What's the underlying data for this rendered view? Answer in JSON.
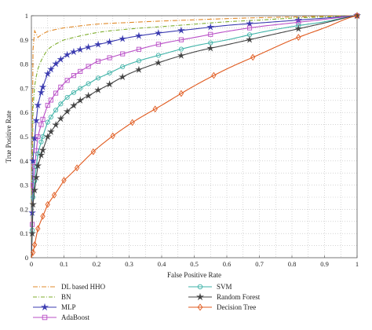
{
  "chart_data": {
    "type": "line",
    "title": "",
    "xlabel": "False Positive Rate",
    "ylabel": "True Positive Rate",
    "xlim": [
      0,
      1
    ],
    "ylim": [
      0,
      1
    ],
    "xticks": [
      "0",
      "0.1",
      "0.2",
      "0.3",
      "0.4",
      "0.5",
      "0.6",
      "0.7",
      "0.8",
      "0.9",
      "1"
    ],
    "yticks": [
      "0",
      "0.1",
      "0.2",
      "0.3",
      "0.4",
      "0.5",
      "0.6",
      "0.7",
      "0.8",
      "0.9",
      "1"
    ],
    "grid": true,
    "legend_position": "bottom",
    "series": [
      {
        "name": "DL based HHO",
        "color": "#e08a2a",
        "dash": "6,2,1,2",
        "marker": "none",
        "x": [
          0,
          0.005,
          0.02,
          0.05,
          0.1,
          0.2,
          0.3,
          0.4,
          0.5,
          0.6,
          0.7,
          0.8,
          0.9,
          1.0
        ],
        "y": [
          0,
          0.86,
          0.91,
          0.935,
          0.95,
          0.965,
          0.972,
          0.978,
          0.983,
          0.988,
          0.992,
          0.995,
          0.998,
          1.0
        ]
      },
      {
        "name": "BN",
        "color": "#7fae2e",
        "dash": "5,2,1,2",
        "marker": "none",
        "x": [
          0,
          0.005,
          0.02,
          0.05,
          0.1,
          0.2,
          0.3,
          0.4,
          0.5,
          0.6,
          0.7,
          0.8,
          0.9,
          1.0
        ],
        "y": [
          0,
          0.62,
          0.78,
          0.86,
          0.9,
          0.93,
          0.945,
          0.955,
          0.965,
          0.975,
          0.982,
          0.99,
          0.995,
          1.0
        ]
      },
      {
        "name": "MLP",
        "color": "#3b3bb0",
        "dash": "",
        "marker": "star",
        "x": [
          0,
          0.005,
          0.02,
          0.05,
          0.1,
          0.15,
          0.2,
          0.3,
          0.4,
          0.5,
          0.6,
          0.7,
          0.8,
          0.9,
          1.0
        ],
        "y": [
          0,
          0.4,
          0.63,
          0.76,
          0.83,
          0.86,
          0.88,
          0.91,
          0.93,
          0.945,
          0.96,
          0.97,
          0.98,
          0.99,
          1.0
        ]
      },
      {
        "name": "AdaBoost",
        "color": "#b94fc7",
        "dash": "",
        "marker": "square",
        "x": [
          0,
          0.005,
          0.02,
          0.05,
          0.1,
          0.15,
          0.2,
          0.3,
          0.4,
          0.5,
          0.6,
          0.7,
          0.8,
          0.9,
          1.0
        ],
        "y": [
          0,
          0.3,
          0.5,
          0.63,
          0.72,
          0.77,
          0.81,
          0.85,
          0.885,
          0.91,
          0.935,
          0.955,
          0.97,
          0.985,
          1.0
        ]
      },
      {
        "name": "SVM",
        "color": "#3fb3a8",
        "dash": "",
        "marker": "circle",
        "x": [
          0,
          0.005,
          0.02,
          0.05,
          0.1,
          0.15,
          0.2,
          0.3,
          0.4,
          0.5,
          0.6,
          0.7,
          0.8,
          0.9,
          1.0
        ],
        "y": [
          0,
          0.25,
          0.43,
          0.56,
          0.65,
          0.7,
          0.74,
          0.8,
          0.84,
          0.875,
          0.9,
          0.93,
          0.955,
          0.975,
          1.0
        ]
      },
      {
        "name": "Random Forest",
        "color": "#444444",
        "dash": "",
        "marker": "star",
        "x": [
          0,
          0.005,
          0.02,
          0.05,
          0.1,
          0.15,
          0.2,
          0.3,
          0.4,
          0.5,
          0.6,
          0.7,
          0.8,
          0.9,
          1.0
        ],
        "y": [
          0,
          0.22,
          0.38,
          0.5,
          0.59,
          0.65,
          0.69,
          0.76,
          0.81,
          0.85,
          0.88,
          0.91,
          0.94,
          0.97,
          1.0
        ]
      },
      {
        "name": "Decision Tree",
        "color": "#e05a1e",
        "dash": "",
        "marker": "diamond",
        "x": [
          0,
          0.02,
          0.05,
          0.1,
          0.2,
          0.3,
          0.4,
          0.5,
          0.6,
          0.7,
          0.8,
          0.9,
          1.0
        ],
        "y": [
          0,
          0.12,
          0.22,
          0.32,
          0.45,
          0.55,
          0.63,
          0.71,
          0.78,
          0.84,
          0.9,
          0.95,
          1.0
        ]
      }
    ]
  }
}
